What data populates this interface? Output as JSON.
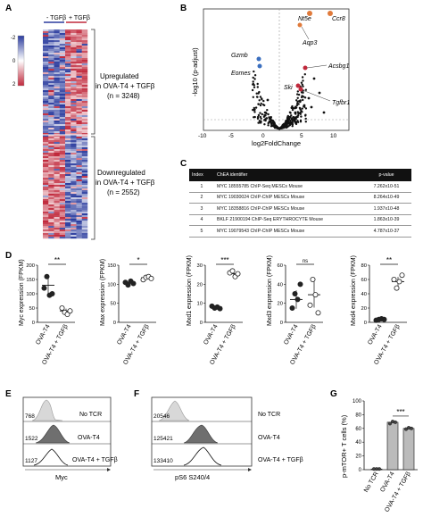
{
  "panels": {
    "A": "A",
    "B": "B",
    "C": "C",
    "D": "D",
    "E": "E",
    "F": "F",
    "G": "G"
  },
  "heatmap": {
    "col_minus": "- TGFβ",
    "col_plus": "+ TGFβ",
    "scale_ticks": [
      "-2",
      "0",
      "2"
    ],
    "scale_colors": {
      "low": "#2b3c9e",
      "mid": "#ffffff",
      "high": "#c0283b"
    },
    "up_text": [
      "Upregulated",
      "in OVA-T4 + TGFβ",
      "(n = 3248)"
    ],
    "down_text": [
      "Downregulated",
      "in OVA-T4 + TGFβ",
      "(n = 2552)"
    ]
  },
  "volcano": {
    "ylabel": "-log10 (p-adjust)",
    "xlabel": "log2FoldChange",
    "xticks": [
      "-10",
      "-5",
      "0",
      "5",
      "10"
    ],
    "genes": [
      "Nt5e",
      "Ccr8",
      "Aqp3",
      "Acsbg1",
      "Gzmb",
      "Eomes",
      "Ski",
      "Tgfbr1"
    ]
  },
  "chea_table": {
    "headers": [
      "Index",
      "ChEA identifier",
      "p-value"
    ],
    "rows": [
      [
        "1",
        "MYC 18555785 ChIP-Seq MESCs Mouse",
        "7.262x10-51"
      ],
      [
        "2",
        "MYC 19030024 ChIP-ChIP MESCs Mouse",
        "8.264x10-49"
      ],
      [
        "3",
        "MYC 18358816 ChIP-ChIP MESCs Mouse",
        "1.937x10-48"
      ],
      [
        "4",
        "BKLF 21900194 ChIP-Seq ERYTHROCYTE Mouse",
        "1.863x10-39"
      ],
      [
        "5",
        "MYC 19079543 ChIP-ChIP MESCs Mouse",
        "4.787x10-37"
      ]
    ]
  },
  "expression_plots": [
    {
      "gene": "Myc",
      "ylabel": "Myc expression (FPKM)",
      "yticks": [
        "0",
        "50",
        "100",
        "150",
        "200"
      ],
      "sig": "**",
      "groups": [
        "OVA-T4",
        "OVA-T4 + TGFβ"
      ],
      "mean": [
        130,
        40
      ],
      "points": [
        [
          120,
          160,
          95,
          100
        ],
        [
          50,
          35,
          28,
          40
        ]
      ]
    },
    {
      "gene": "Max",
      "ylabel": "Max expression (FPKM)",
      "yticks": [
        "0",
        "50",
        "100",
        "150"
      ],
      "sig": "*",
      "groups": [
        "OVA-T4",
        "OVA-T4 + TGFβ"
      ],
      "mean": [
        105,
        117
      ],
      "points": [
        [
          105,
          98,
          108,
          102
        ],
        [
          112,
          118,
          120,
          115
        ]
      ]
    },
    {
      "gene": "Mxd1",
      "ylabel": "Mxd1 expression (FPKM)",
      "yticks": [
        "0",
        "10",
        "20",
        "30"
      ],
      "sig": "***",
      "groups": [
        "OVA-T4",
        "OVA-T4 + TGFβ"
      ],
      "mean": [
        8,
        25.5
      ],
      "points": [
        [
          8.5,
          7.5,
          8,
          7.2
        ],
        [
          26,
          27,
          24,
          25.5
        ]
      ]
    },
    {
      "gene": "Mxd3",
      "ylabel": "Mxd3 expression (FPKM)",
      "yticks": [
        "0",
        "20",
        "40",
        "60"
      ],
      "sig": "ns",
      "groups": [
        "OVA-T4",
        "OVA-T4 + TGFβ"
      ],
      "mean": [
        24,
        29
      ],
      "points": [
        [
          15,
          30,
          24,
          40
        ],
        [
          18,
          45,
          29,
          10
        ]
      ]
    },
    {
      "gene": "Mxd4",
      "ylabel": "Mxd4 expression (FPKM)",
      "yticks": [
        "0",
        "20",
        "40",
        "60",
        "80"
      ],
      "sig": "**",
      "groups": [
        "OVA-T4",
        "OVA-T4 + TGFβ"
      ],
      "mean": [
        4,
        57
      ],
      "points": [
        [
          3,
          4,
          5,
          4
        ],
        [
          60,
          48,
          57,
          66
        ]
      ]
    }
  ],
  "histogram_E": {
    "xlabel": "Myc",
    "rows": [
      {
        "mfi": "768",
        "label": "No TCR"
      },
      {
        "mfi": "1522",
        "label": "OVA-T4"
      },
      {
        "mfi": "1127",
        "label": "OVA-T4 + TGFβ"
      }
    ]
  },
  "histogram_F": {
    "xlabel": "pS6 S240/4",
    "rows": [
      {
        "mfi": "20546",
        "label": "No TCR"
      },
      {
        "mfi": "125421",
        "label": "OVA-T4"
      },
      {
        "mfi": "133410",
        "label": "OVA-T4 + TGFβ"
      }
    ]
  },
  "chart_data": {
    "type": "bar",
    "ylabel": "p-mTOR+ T cells (%)",
    "yticks": [
      "0",
      "20",
      "40",
      "60",
      "80",
      "100"
    ],
    "ylim": [
      0,
      100
    ],
    "categories": [
      "No TCR",
      "OVA-T4",
      "OVA-T4 + TGFβ"
    ],
    "values": [
      1,
      69,
      60
    ],
    "points": [
      [
        1,
        1,
        1
      ],
      [
        67,
        70,
        69
      ],
      [
        59,
        61,
        60
      ]
    ],
    "sig": "***"
  },
  "colors": {
    "dot_dark": "#222222",
    "volcano_orange": "#e07a3b",
    "volcano_blue": "#3b6fbf",
    "volcano_red": "#c0283b"
  }
}
